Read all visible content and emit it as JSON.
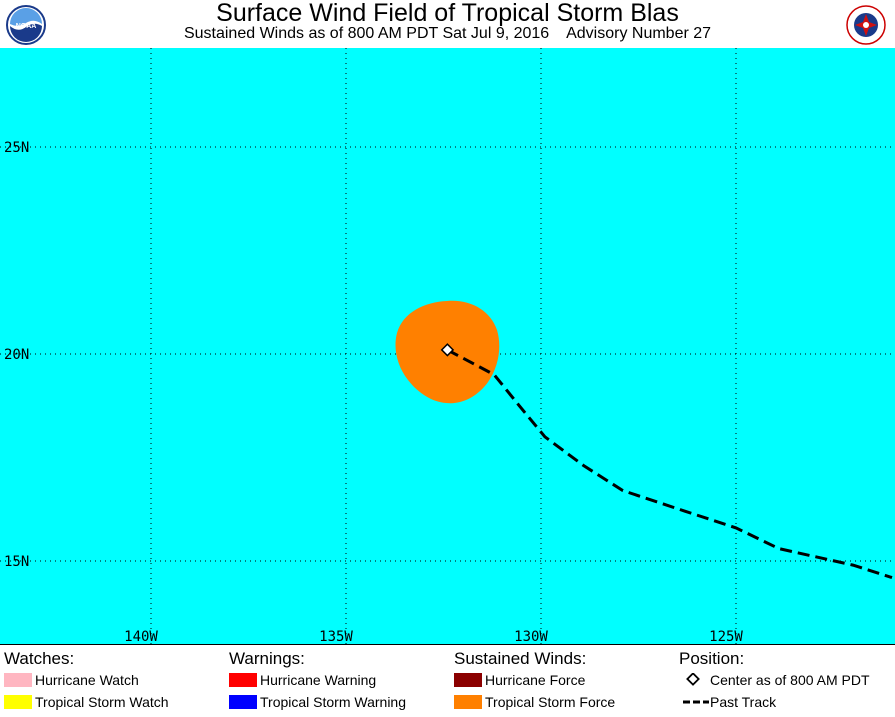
{
  "header": {
    "title": "Surface Wind Field of Tropical Storm Blas",
    "subtitle": "Sustained Winds as of 800 AM PDT Sat Jul 9, 2016    Advisory Number 27",
    "left_logo_text": "NOAA",
    "right_logo_text": "NATIONAL WEATHER SERVICE"
  },
  "map": {
    "ocean_color": "#00ffff",
    "lat_labels": [
      "25N",
      "20N",
      "15N"
    ],
    "lon_labels": [
      "140W",
      "135W",
      "130W",
      "125W"
    ],
    "storm_center": {
      "lat": 20.1,
      "lon": -132.4
    },
    "wind_field_color": "#ff8000",
    "past_track": [
      {
        "lat": 20.1,
        "lon": -132.4
      },
      {
        "lat": 19.5,
        "lon": -131.2
      },
      {
        "lat": 18.8,
        "lon": -130.6
      },
      {
        "lat": 18.0,
        "lon": -129.9
      },
      {
        "lat": 17.3,
        "lon": -128.9
      },
      {
        "lat": 16.7,
        "lon": -127.9
      },
      {
        "lat": 16.2,
        "lon": -126.3
      },
      {
        "lat": 15.8,
        "lon": -125.0
      },
      {
        "lat": 15.3,
        "lon": -123.9
      },
      {
        "lat": 14.9,
        "lon": -122.0
      },
      {
        "lat": 14.6,
        "lon": -121.0
      }
    ]
  },
  "legend": {
    "watches": {
      "heading": "Watches:",
      "items": [
        {
          "label": "Hurricane Watch",
          "color": "#ffb6c1"
        },
        {
          "label": "Tropical Storm Watch",
          "color": "#ffff00"
        }
      ]
    },
    "warnings": {
      "heading": "Warnings:",
      "items": [
        {
          "label": "Hurricane Warning",
          "color": "#ff0000"
        },
        {
          "label": "Tropical Storm Warning",
          "color": "#0000ff"
        }
      ]
    },
    "winds": {
      "heading": "Sustained Winds:",
      "items": [
        {
          "label": "Hurricane Force",
          "color": "#8b0000"
        },
        {
          "label": "Tropical Storm Force",
          "color": "#ff8000"
        }
      ]
    },
    "position": {
      "heading": "Position:",
      "items": [
        {
          "label": "Center as of 800 AM PDT",
          "icon": "diamond-icon"
        },
        {
          "label": "Past Track",
          "icon": "dashed-line-icon"
        }
      ]
    }
  }
}
